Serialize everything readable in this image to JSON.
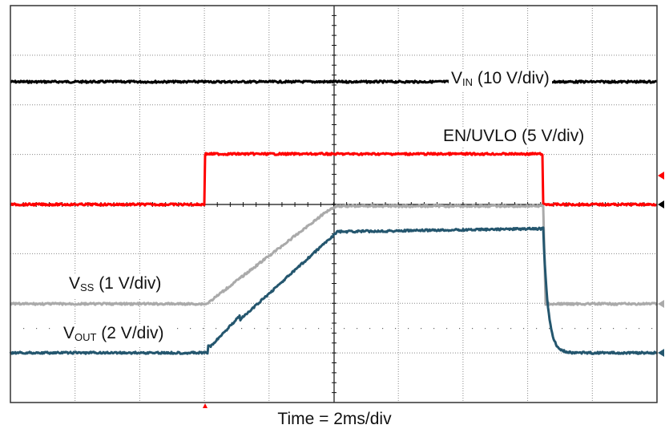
{
  "chart_data": {
    "type": "line",
    "title": "",
    "subtitle": "Oscilloscope capture: EN/UVLO enable and disable with soft-start",
    "xlabel": "Time = 2ms/div",
    "ylabel": "",
    "x_unit": "ms",
    "x_divisions": 10,
    "y_divisions": 8,
    "x_range_ms": [
      0,
      20
    ],
    "grid": true,
    "legend_position": "inline labels",
    "series": [
      {
        "name": "VIN",
        "label_main": "V",
        "label_sub": "IN",
        "label_scale": " (10 V/div)",
        "scale": "10 V/div",
        "color": "#000000",
        "x": [
          0,
          20
        ],
        "y_div": [
          2.5,
          2.5
        ],
        "note": "constant, ~2.5 div above its ground marker"
      },
      {
        "name": "EN/UVLO",
        "label_main": "EN/UVLO",
        "label_sub": "",
        "label_scale": " (5 V/div)",
        "scale": "5 V/div",
        "color": "#ff0000",
        "x": [
          0,
          6.0,
          6.0,
          16.45,
          16.45,
          20
        ],
        "y_div": [
          0,
          0,
          1.0,
          1.0,
          0,
          0
        ]
      },
      {
        "name": "VSS",
        "label_main": "V",
        "label_sub": "SS",
        "label_scale": " (1 V/div)",
        "scale": "1 V/div",
        "color": "#aaaaaa",
        "x": [
          0,
          6.1,
          10.0,
          16.45,
          16.5,
          20
        ],
        "y_div": [
          0,
          0,
          2.0,
          2.0,
          0,
          0
        ]
      },
      {
        "name": "VOUT",
        "label_main": "V",
        "label_sub": "OUT",
        "label_scale": " (2 V/div)",
        "scale": "2 V/div",
        "color": "#24566e",
        "x": [
          0,
          6.1,
          6.2,
          10.1,
          16.45,
          16.7,
          17.0,
          20
        ],
        "y_div": [
          0,
          0,
          0.15,
          2.45,
          2.55,
          0.6,
          0,
          0
        ]
      }
    ],
    "annotations": [
      "VIN (10 V/div)",
      "EN/UVLO (5 V/div)",
      "VSS (1 V/div)",
      "VOUT (2 V/div)",
      "Time = 2ms/div"
    ],
    "trigger_marker": {
      "x_ms": 6.0,
      "color": "#ff0000"
    }
  },
  "labels": {
    "vin": {
      "main": "V",
      "sub": "IN",
      "rest": " (10 V/div)"
    },
    "en": {
      "main": "EN/UVLO (5 V/div)"
    },
    "vss": {
      "main": "V",
      "sub": "SS",
      "rest": " (1 V/div)"
    },
    "vout": {
      "main": "V",
      "sub": "OUT",
      "rest": " (2 V/div)"
    },
    "xaxis": "Time = 2ms/div"
  },
  "colors": {
    "vin": "#000000",
    "en": "#ff0000",
    "vss": "#aaaaaa",
    "vout": "#24566e",
    "grid": "#888888"
  }
}
